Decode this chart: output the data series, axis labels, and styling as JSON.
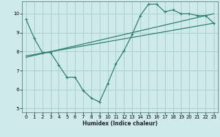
{
  "xlabel": "Humidex (Indice chaleur)",
  "ylabel": "",
  "bg_color": "#ceeaea",
  "grid_color": "#aacfcf",
  "line_color": "#2a7a6e",
  "xlim": [
    -0.5,
    23.5
  ],
  "ylim": [
    4.8,
    10.65
  ],
  "xticks": [
    0,
    1,
    2,
    3,
    4,
    5,
    6,
    7,
    8,
    9,
    10,
    11,
    12,
    13,
    14,
    15,
    16,
    17,
    18,
    19,
    20,
    21,
    22,
    23
  ],
  "yticks": [
    5,
    6,
    7,
    8,
    9,
    10
  ],
  "line1_x": [
    0,
    1,
    2,
    3,
    4,
    5,
    6,
    7,
    8,
    9,
    10,
    11,
    12,
    13,
    14,
    15,
    16,
    17,
    18,
    19,
    20,
    21,
    22,
    23
  ],
  "line1_y": [
    9.7,
    8.7,
    7.95,
    7.95,
    7.3,
    6.65,
    6.65,
    5.95,
    5.55,
    5.35,
    6.3,
    7.35,
    8.05,
    8.9,
    9.9,
    10.5,
    10.5,
    10.1,
    10.2,
    10.0,
    10.0,
    9.9,
    9.9,
    9.5
  ],
  "line2_x": [
    3,
    23
  ],
  "line2_y": [
    8.0,
    10.0
  ],
  "line3_x": [
    3,
    23
  ],
  "line3_y": [
    8.0,
    9.5
  ]
}
